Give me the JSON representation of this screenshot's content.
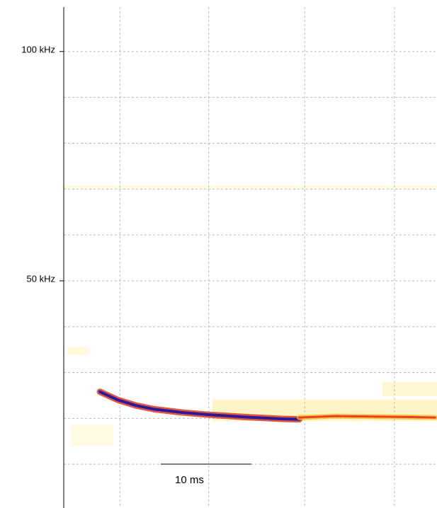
{
  "chart_data": {
    "type": "spectrogram",
    "xlim": [
      0,
      41.2
    ],
    "ylim": [
      0,
      110
    ],
    "yticks": [
      {
        "value": 100,
        "label": "100 kHz"
      },
      {
        "value": 50,
        "label": "50 kHz"
      }
    ],
    "ygrid": [
      10,
      20,
      30,
      40,
      50,
      60,
      70,
      80,
      90,
      100
    ],
    "xgrid": [
      6.2,
      16,
      26.6,
      36.5
    ],
    "grid": true,
    "series": [
      {
        "color": "#2a1a9a",
        "x": [
          4,
          6,
          8,
          10,
          13,
          16,
          20,
          24,
          26
        ],
        "values": [
          25.8,
          24,
          22.8,
          22,
          21.3,
          20.8,
          20.3,
          19.9,
          19.8
        ]
      },
      {
        "color": "#e84020",
        "x": [
          26,
          30,
          34,
          38,
          41
        ],
        "values": [
          20.2,
          20.5,
          20.4,
          20.3,
          20.2
        ]
      }
    ],
    "scale_bar": {
      "value": 10,
      "label": "10 ms"
    }
  }
}
